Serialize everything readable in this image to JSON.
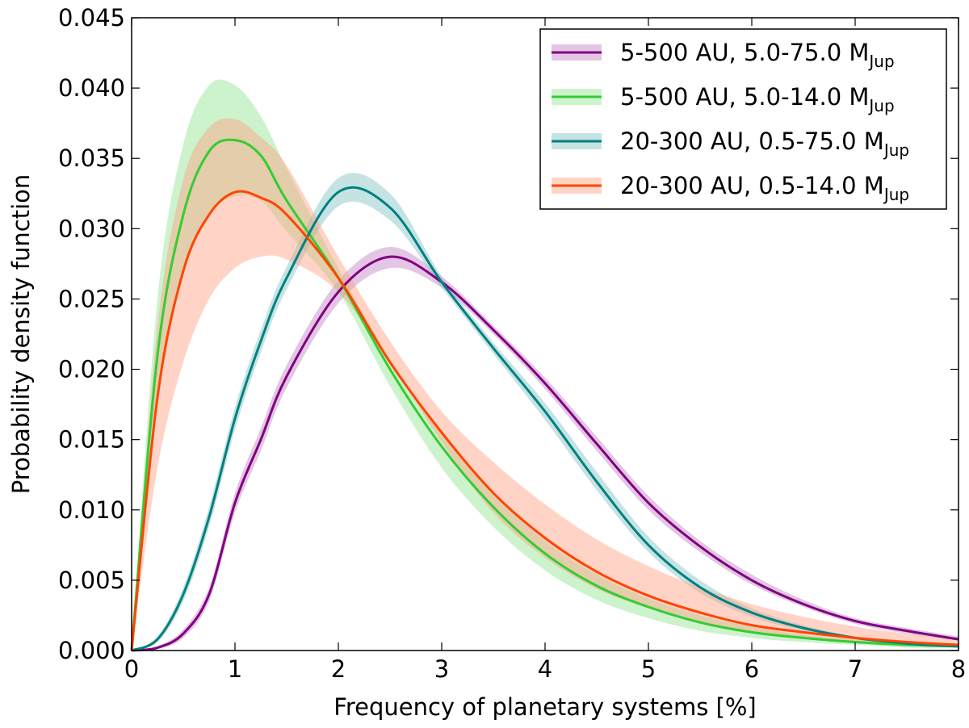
{
  "chart_data": {
    "type": "line",
    "xlabel": "Frequency of planetary systems [%]",
    "ylabel": "Probability density function",
    "xlim": [
      0,
      8
    ],
    "ylim": [
      0,
      0.045
    ],
    "xticks": [
      0,
      1,
      2,
      3,
      4,
      5,
      6,
      7,
      8
    ],
    "yticks": [
      {
        "value": 0,
        "label": "0.000"
      },
      {
        "value": 0.005,
        "label": "0.005"
      },
      {
        "value": 0.01,
        "label": "0.010"
      },
      {
        "value": 0.015,
        "label": "0.015"
      },
      {
        "value": 0.02,
        "label": "0.020"
      },
      {
        "value": 0.025,
        "label": "0.025"
      },
      {
        "value": 0.03,
        "label": "0.030"
      },
      {
        "value": 0.035,
        "label": "0.035"
      },
      {
        "value": 0.04,
        "label": "0.040"
      },
      {
        "value": 0.045,
        "label": "0.045"
      }
    ],
    "legend": "upper right",
    "x": [
      0,
      0.25,
      0.5,
      0.75,
      1,
      1.25,
      1.5,
      2,
      2.5,
      3,
      3.5,
      4,
      4.5,
      5,
      5.5,
      6,
      6.5,
      7,
      7.5,
      8
    ],
    "series": [
      {
        "name": "5-500 AU, 5.0-75.0 M",
        "name_subscript": "Jup",
        "color": "#800080",
        "band_color": "#c080c0",
        "values": [
          0,
          0.0002,
          0.0012,
          0.004,
          0.0105,
          0.015,
          0.0195,
          0.0255,
          0.028,
          0.0262,
          0.0228,
          0.019,
          0.0147,
          0.0105,
          0.0074,
          0.005,
          0.0033,
          0.0021,
          0.0014,
          0.0008
        ],
        "lower": [
          0,
          0.0001,
          0.0009,
          0.0035,
          0.0098,
          0.0142,
          0.0187,
          0.0247,
          0.0272,
          0.0258,
          0.0225,
          0.0186,
          0.0142,
          0.01,
          0.007,
          0.0047,
          0.0031,
          0.0019,
          0.0012,
          0.0007
        ],
        "upper": [
          0,
          0.0003,
          0.0015,
          0.0045,
          0.0112,
          0.0158,
          0.0203,
          0.0263,
          0.0287,
          0.0266,
          0.0231,
          0.0194,
          0.0152,
          0.011,
          0.0078,
          0.0054,
          0.0036,
          0.0023,
          0.0016,
          0.001
        ]
      },
      {
        "name": "5-500 AU, 5.0-14.0 M",
        "name_subscript": "Jup",
        "color": "#33cc33",
        "band_color": "#90e490",
        "values": [
          0,
          0.021,
          0.031,
          0.0355,
          0.0363,
          0.0352,
          0.032,
          0.0265,
          0.02,
          0.0145,
          0.0102,
          0.0069,
          0.0046,
          0.0031,
          0.002,
          0.0013,
          0.0009,
          0.0006,
          0.0004,
          0.0003
        ],
        "lower": [
          0,
          0.018,
          0.027,
          0.031,
          0.0323,
          0.032,
          0.0298,
          0.0255,
          0.0188,
          0.013,
          0.0088,
          0.0057,
          0.0036,
          0.0023,
          0.0014,
          0.0009,
          0.0006,
          0.0004,
          0.0002,
          0.0002
        ],
        "upper": [
          0,
          0.025,
          0.036,
          0.0402,
          0.0402,
          0.038,
          0.0343,
          0.0272,
          0.0208,
          0.0155,
          0.0112,
          0.0078,
          0.0054,
          0.0037,
          0.0025,
          0.0017,
          0.0011,
          0.0008,
          0.0005,
          0.0004
        ]
      },
      {
        "name": "20-300 AU, 0.5-75.0 M",
        "name_subscript": "Jup",
        "color": "#008080",
        "band_color": "#80c0c0",
        "values": [
          0,
          0.0008,
          0.004,
          0.0095,
          0.0165,
          0.022,
          0.0265,
          0.0326,
          0.0315,
          0.0262,
          0.0215,
          0.017,
          0.012,
          0.0075,
          0.0045,
          0.0027,
          0.0016,
          0.0009,
          0.0005,
          0.0003
        ],
        "lower": [
          0,
          0.0006,
          0.0035,
          0.0088,
          0.0157,
          0.0212,
          0.0257,
          0.0316,
          0.0306,
          0.0258,
          0.0211,
          0.0164,
          0.0114,
          0.007,
          0.0041,
          0.0024,
          0.0014,
          0.0008,
          0.0004,
          0.0002
        ],
        "upper": [
          0,
          0.001,
          0.0045,
          0.0102,
          0.0173,
          0.0228,
          0.0273,
          0.0336,
          0.0325,
          0.0266,
          0.0219,
          0.0176,
          0.0127,
          0.0081,
          0.005,
          0.003,
          0.0018,
          0.001,
          0.0006,
          0.0004
        ]
      },
      {
        "name": "20-300 AU, 0.5-14.0 M",
        "name_subscript": "Jup",
        "color": "#ff4500",
        "band_color": "#ffa080",
        "values": [
          0,
          0.018,
          0.027,
          0.031,
          0.0326,
          0.0322,
          0.031,
          0.0265,
          0.0205,
          0.0155,
          0.0112,
          0.008,
          0.0056,
          0.0039,
          0.0027,
          0.0018,
          0.0013,
          0.0009,
          0.0006,
          0.0004
        ],
        "lower": [
          0,
          0.013,
          0.0205,
          0.025,
          0.0272,
          0.028,
          0.0278,
          0.0255,
          0.0205,
          0.0148,
          0.0098,
          0.0066,
          0.0044,
          0.003,
          0.002,
          0.0013,
          0.0009,
          0.0006,
          0.0004,
          0.0002
        ],
        "upper": [
          0,
          0.023,
          0.0335,
          0.0372,
          0.0378,
          0.0365,
          0.0345,
          0.028,
          0.022,
          0.017,
          0.0134,
          0.0104,
          0.0079,
          0.006,
          0.0045,
          0.0033,
          0.0024,
          0.0017,
          0.0012,
          0.0008
        ]
      }
    ]
  }
}
